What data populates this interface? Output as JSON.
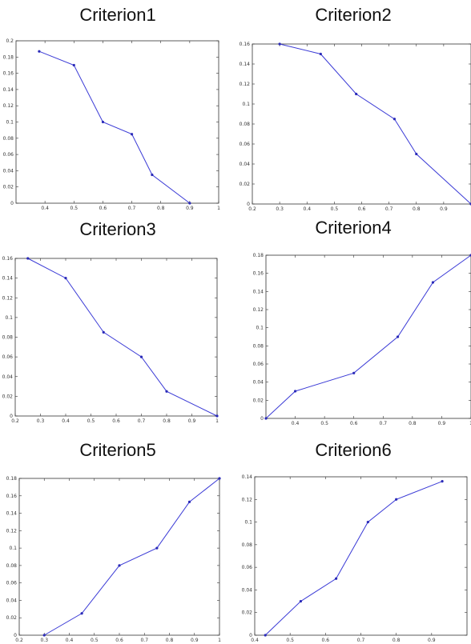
{
  "colors": {
    "line": "#3b3bd6",
    "marker": "#2a2ab8",
    "axis": "#333333"
  },
  "chart_data": [
    {
      "type": "line",
      "title": "Criterion1",
      "x": [
        0.38,
        0.5,
        0.6,
        0.7,
        0.77,
        0.9
      ],
      "y": [
        0.187,
        0.17,
        0.1,
        0.085,
        0.035,
        0.0
      ],
      "xlim": [
        0.3,
        1.0
      ],
      "ylim": [
        0,
        0.2
      ],
      "xticks": [
        "0.4",
        "0.5",
        "0.6",
        "0.7",
        "0.8",
        "0.9",
        "1"
      ],
      "yticks": [
        "0",
        "0.02",
        "0.04",
        "0.06",
        "0.08",
        "0.1",
        "0.12",
        "0.14",
        "0.16",
        "0.18",
        "0.2"
      ],
      "xtick_values": [
        0.4,
        0.5,
        0.6,
        0.7,
        0.8,
        0.9,
        1.0
      ],
      "ytick_values": [
        0,
        0.02,
        0.04,
        0.06,
        0.08,
        0.1,
        0.12,
        0.14,
        0.16,
        0.18,
        0.2
      ]
    },
    {
      "type": "line",
      "title": "Criterion2",
      "x": [
        0.3,
        0.45,
        0.58,
        0.72,
        0.8,
        1.0
      ],
      "y": [
        0.16,
        0.15,
        0.11,
        0.085,
        0.05,
        0.0
      ],
      "xlim": [
        0.2,
        1.0
      ],
      "ylim": [
        0,
        0.16
      ],
      "xticks": [
        "0.2",
        "0.3",
        "0.4",
        "0.5",
        "0.6",
        "0.7",
        "0.8",
        "0.9"
      ],
      "yticks": [
        "0",
        "0.02",
        "0.04",
        "0.06",
        "0.08",
        "0.1",
        "0.12",
        "0.14",
        "0.16"
      ],
      "xtick_values": [
        0.2,
        0.3,
        0.4,
        0.5,
        0.6,
        0.7,
        0.8,
        0.9
      ],
      "ytick_values": [
        0,
        0.02,
        0.04,
        0.06,
        0.08,
        0.1,
        0.12,
        0.14,
        0.16
      ]
    },
    {
      "type": "line",
      "title": "Criterion3",
      "x": [
        0.25,
        0.4,
        0.55,
        0.7,
        0.8,
        1.0
      ],
      "y": [
        0.16,
        0.14,
        0.085,
        0.06,
        0.025,
        0.0
      ],
      "xlim": [
        0.2,
        1.0
      ],
      "ylim": [
        0,
        0.16
      ],
      "xticks": [
        "0.2",
        "0.3",
        "0.4",
        "0.5",
        "0.6",
        "0.7",
        "0.8",
        "0.9",
        "1"
      ],
      "yticks": [
        "0",
        "0.02",
        "0.04",
        "0.06",
        "0.08",
        "0.1",
        "0.12",
        "0.14",
        "0.16"
      ],
      "xtick_values": [
        0.2,
        0.3,
        0.4,
        0.5,
        0.6,
        0.7,
        0.8,
        0.9,
        1.0
      ],
      "ytick_values": [
        0,
        0.02,
        0.04,
        0.06,
        0.08,
        0.1,
        0.12,
        0.14,
        0.16
      ]
    },
    {
      "type": "line",
      "title": "Criterion4",
      "x": [
        0.3,
        0.4,
        0.6,
        0.75,
        0.87,
        1.0
      ],
      "y": [
        0.0,
        0.03,
        0.05,
        0.09,
        0.15,
        0.18
      ],
      "xlim": [
        0.3,
        1.0
      ],
      "ylim": [
        0,
        0.18
      ],
      "xticks": [
        "0.4",
        "0.5",
        "0.6",
        "0.7",
        "0.8",
        "0.9",
        "1"
      ],
      "yticks": [
        "0",
        "0.02",
        "0.04",
        "0.06",
        "0.08",
        "0.1",
        "0.12",
        "0.14",
        "0.16",
        "0.18"
      ],
      "xtick_values": [
        0.4,
        0.5,
        0.6,
        0.7,
        0.8,
        0.9,
        1.0
      ],
      "ytick_values": [
        0,
        0.02,
        0.04,
        0.06,
        0.08,
        0.1,
        0.12,
        0.14,
        0.16,
        0.18
      ]
    },
    {
      "type": "line",
      "title": "Criterion5",
      "x": [
        0.3,
        0.45,
        0.6,
        0.75,
        0.88,
        1.0
      ],
      "y": [
        0.0,
        0.025,
        0.08,
        0.1,
        0.153,
        0.18
      ],
      "xlim": [
        0.2,
        1.0
      ],
      "ylim": [
        0,
        0.18
      ],
      "xticks": [
        "0.2",
        "0.3",
        "0.4",
        "0.5",
        "0.6",
        "0.7",
        "0.8",
        "0.9",
        "1"
      ],
      "yticks": [
        "0",
        "0.02",
        "0.04",
        "0.06",
        "0.08",
        "0.1",
        "0.12",
        "0.14",
        "0.16",
        "0.18"
      ],
      "xtick_values": [
        0.2,
        0.3,
        0.4,
        0.5,
        0.6,
        0.7,
        0.8,
        0.9,
        1.0
      ],
      "ytick_values": [
        0,
        0.02,
        0.04,
        0.06,
        0.08,
        0.1,
        0.12,
        0.14,
        0.16,
        0.18
      ]
    },
    {
      "type": "line",
      "title": "Criterion6",
      "x": [
        0.43,
        0.53,
        0.63,
        0.72,
        0.8,
        0.93
      ],
      "y": [
        0.0,
        0.03,
        0.05,
        0.1,
        0.12,
        0.136
      ],
      "xlim": [
        0.4,
        1.0
      ],
      "ylim": [
        0,
        0.14
      ],
      "xticks": [
        "0.4",
        "0.5",
        "0.6",
        "0.7",
        "0.8",
        "0.9"
      ],
      "yticks": [
        "0",
        "0.02",
        "0.04",
        "0.06",
        "0.08",
        "0.1",
        "0.12",
        "0.14"
      ],
      "xtick_values": [
        0.4,
        0.5,
        0.6,
        0.7,
        0.8,
        0.9
      ],
      "ytick_values": [
        0,
        0.02,
        0.04,
        0.06,
        0.08,
        0.1,
        0.12,
        0.14
      ]
    }
  ]
}
